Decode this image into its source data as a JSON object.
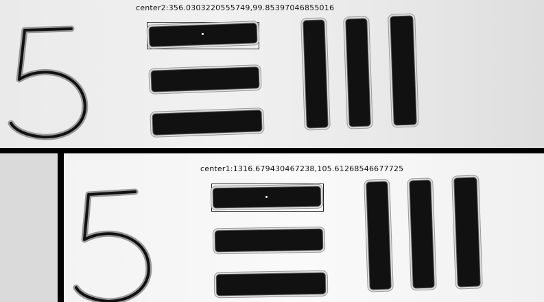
{
  "top_view": {
    "label": "center2:356.0303220555749,99.85397046855016"
  },
  "bottom_view": {
    "label": "center1:1316.679430467238,105.61268546677725"
  },
  "colors": {
    "shape": "#111111",
    "background_top": "#eeeeee",
    "background_bottom": "#f6f6f6",
    "divider": "#000000"
  }
}
